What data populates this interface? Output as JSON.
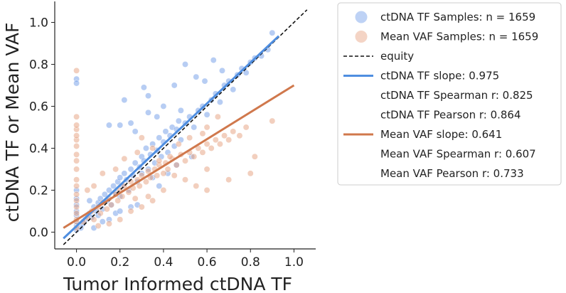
{
  "chart_data": {
    "type": "scatter",
    "xlabel": "Tumor Informed ctDNA TF",
    "ylabel": "ctDNA TF or Mean VAF",
    "xlim": [
      -0.1,
      1.1
    ],
    "ylim": [
      -0.08,
      1.1
    ],
    "x_ticks": [
      "0.0",
      "0.2",
      "0.4",
      "0.6",
      "0.8",
      "1.0"
    ],
    "y_ticks": [
      "0.0",
      "0.2",
      "0.4",
      "0.6",
      "0.8",
      "1.0"
    ],
    "grid": false,
    "legend_placement": "outside-right",
    "series": [
      {
        "name": "ctDNA TF Samples: n = 1659",
        "kind": "scatter",
        "color": "#6f9be8",
        "points": [
          [
            0.0,
            0.01
          ],
          [
            0.0,
            0.03
          ],
          [
            0.0,
            0.05
          ],
          [
            0.0,
            0.08
          ],
          [
            0.0,
            0.1
          ],
          [
            0.0,
            0.13
          ],
          [
            0.0,
            0.16
          ],
          [
            0.0,
            0.2
          ],
          [
            0.0,
            0.73
          ],
          [
            0.0,
            0.71
          ],
          [
            0.02,
            0.02
          ],
          [
            0.03,
            0.04
          ],
          [
            0.04,
            0.06
          ],
          [
            0.05,
            0.08
          ],
          [
            0.06,
            0.09
          ],
          [
            0.07,
            0.07
          ],
          [
            0.08,
            0.12
          ],
          [
            0.09,
            0.1
          ],
          [
            0.1,
            0.08
          ],
          [
            0.1,
            0.14
          ],
          [
            0.11,
            0.16
          ],
          [
            0.12,
            0.11
          ],
          [
            0.13,
            0.18
          ],
          [
            0.14,
            0.15
          ],
          [
            0.15,
            0.2
          ],
          [
            0.16,
            0.13
          ],
          [
            0.17,
            0.22
          ],
          [
            0.18,
            0.19
          ],
          [
            0.19,
            0.24
          ],
          [
            0.2,
            0.17
          ],
          [
            0.2,
            0.26
          ],
          [
            0.21,
            0.22
          ],
          [
            0.22,
            0.28
          ],
          [
            0.23,
            0.25
          ],
          [
            0.24,
            0.2
          ],
          [
            0.25,
            0.3
          ],
          [
            0.26,
            0.27
          ],
          [
            0.27,
            0.33
          ],
          [
            0.28,
            0.24
          ],
          [
            0.29,
            0.31
          ],
          [
            0.3,
            0.36
          ],
          [
            0.3,
            0.28
          ],
          [
            0.31,
            0.34
          ],
          [
            0.32,
            0.4
          ],
          [
            0.33,
            0.3
          ],
          [
            0.34,
            0.37
          ],
          [
            0.35,
            0.42
          ],
          [
            0.36,
            0.33
          ],
          [
            0.37,
            0.39
          ],
          [
            0.38,
            0.45
          ],
          [
            0.39,
            0.36
          ],
          [
            0.4,
            0.43
          ],
          [
            0.41,
            0.48
          ],
          [
            0.42,
            0.38
          ],
          [
            0.43,
            0.46
          ],
          [
            0.44,
            0.5
          ],
          [
            0.45,
            0.41
          ],
          [
            0.46,
            0.49
          ],
          [
            0.47,
            0.53
          ],
          [
            0.48,
            0.44
          ],
          [
            0.5,
            0.52
          ],
          [
            0.52,
            0.55
          ],
          [
            0.54,
            0.5
          ],
          [
            0.56,
            0.58
          ],
          [
            0.58,
            0.6
          ],
          [
            0.6,
            0.56
          ],
          [
            0.62,
            0.63
          ],
          [
            0.64,
            0.66
          ],
          [
            0.66,
            0.62
          ],
          [
            0.68,
            0.7
          ],
          [
            0.7,
            0.72
          ],
          [
            0.72,
            0.68
          ],
          [
            0.74,
            0.75
          ],
          [
            0.76,
            0.78
          ],
          [
            0.78,
            0.76
          ],
          [
            0.8,
            0.81
          ],
          [
            0.82,
            0.83
          ],
          [
            0.85,
            0.84
          ],
          [
            0.88,
            0.87
          ],
          [
            0.9,
            0.95
          ],
          [
            0.22,
            0.63
          ],
          [
            0.25,
            0.52
          ],
          [
            0.27,
            0.48
          ],
          [
            0.2,
            0.51
          ],
          [
            0.15,
            0.51
          ],
          [
            0.31,
            0.69
          ],
          [
            0.33,
            0.57
          ],
          [
            0.33,
            0.65
          ],
          [
            0.45,
            0.7
          ],
          [
            0.55,
            0.74
          ],
          [
            0.5,
            0.8
          ],
          [
            0.48,
            0.58
          ],
          [
            0.4,
            0.6
          ],
          [
            0.37,
            0.55
          ],
          [
            0.59,
            0.72
          ],
          [
            0.63,
            0.82
          ],
          [
            0.67,
            0.77
          ],
          [
            0.35,
            0.26
          ],
          [
            0.38,
            0.22
          ],
          [
            0.28,
            0.13
          ],
          [
            0.12,
            0.05
          ],
          [
            0.15,
            0.06
          ],
          [
            0.18,
            0.09
          ],
          [
            0.42,
            0.28
          ],
          [
            0.46,
            0.32
          ],
          [
            0.53,
            0.36
          ],
          [
            0.25,
            0.12
          ],
          [
            0.2,
            0.1
          ],
          [
            0.08,
            0.02
          ],
          [
            0.06,
            0.15
          ]
        ]
      },
      {
        "name": "Mean VAF Samples: n = 1659",
        "kind": "scatter",
        "color": "#e6a07e",
        "points": [
          [
            0.0,
            0.02
          ],
          [
            0.0,
            0.05
          ],
          [
            0.0,
            0.09
          ],
          [
            0.0,
            0.12
          ],
          [
            0.0,
            0.15
          ],
          [
            0.0,
            0.18
          ],
          [
            0.0,
            0.22
          ],
          [
            0.0,
            0.25
          ],
          [
            0.0,
            0.3
          ],
          [
            0.0,
            0.34
          ],
          [
            0.0,
            0.37
          ],
          [
            0.0,
            0.41
          ],
          [
            0.0,
            0.44
          ],
          [
            0.0,
            0.46
          ],
          [
            0.0,
            0.49
          ],
          [
            0.0,
            0.51
          ],
          [
            0.0,
            0.55
          ],
          [
            0.0,
            0.77
          ],
          [
            0.0,
            0.06
          ],
          [
            0.03,
            0.05
          ],
          [
            0.05,
            0.07
          ],
          [
            0.07,
            0.1
          ],
          [
            0.08,
            0.06
          ],
          [
            0.1,
            0.12
          ],
          [
            0.11,
            0.09
          ],
          [
            0.12,
            0.14
          ],
          [
            0.14,
            0.11
          ],
          [
            0.15,
            0.16
          ],
          [
            0.16,
            0.13
          ],
          [
            0.18,
            0.18
          ],
          [
            0.19,
            0.15
          ],
          [
            0.2,
            0.2
          ],
          [
            0.21,
            0.17
          ],
          [
            0.22,
            0.22
          ],
          [
            0.24,
            0.19
          ],
          [
            0.25,
            0.24
          ],
          [
            0.26,
            0.21
          ],
          [
            0.28,
            0.25
          ],
          [
            0.29,
            0.22
          ],
          [
            0.3,
            0.27
          ],
          [
            0.32,
            0.24
          ],
          [
            0.33,
            0.29
          ],
          [
            0.34,
            0.26
          ],
          [
            0.36,
            0.3
          ],
          [
            0.37,
            0.27
          ],
          [
            0.38,
            0.32
          ],
          [
            0.4,
            0.28
          ],
          [
            0.41,
            0.33
          ],
          [
            0.42,
            0.3
          ],
          [
            0.44,
            0.35
          ],
          [
            0.46,
            0.32
          ],
          [
            0.48,
            0.37
          ],
          [
            0.5,
            0.34
          ],
          [
            0.52,
            0.38
          ],
          [
            0.54,
            0.36
          ],
          [
            0.56,
            0.4
          ],
          [
            0.58,
            0.38
          ],
          [
            0.6,
            0.42
          ],
          [
            0.62,
            0.4
          ],
          [
            0.64,
            0.44
          ],
          [
            0.66,
            0.42
          ],
          [
            0.68,
            0.46
          ],
          [
            0.7,
            0.44
          ],
          [
            0.72,
            0.48
          ],
          [
            0.75,
            0.46
          ],
          [
            0.78,
            0.5
          ],
          [
            0.82,
            0.36
          ],
          [
            0.9,
            0.53
          ],
          [
            0.8,
            0.28
          ],
          [
            0.7,
            0.25
          ],
          [
            0.6,
            0.3
          ],
          [
            0.55,
            0.22
          ],
          [
            0.5,
            0.25
          ],
          [
            0.45,
            0.27
          ],
          [
            0.4,
            0.2
          ],
          [
            0.35,
            0.15
          ],
          [
            0.3,
            0.12
          ],
          [
            0.25,
            0.1
          ],
          [
            0.2,
            0.06
          ],
          [
            0.15,
            0.04
          ],
          [
            0.1,
            0.03
          ],
          [
            0.3,
            0.45
          ],
          [
            0.35,
            0.4
          ],
          [
            0.28,
            0.38
          ],
          [
            0.22,
            0.35
          ],
          [
            0.18,
            0.3
          ],
          [
            0.12,
            0.28
          ],
          [
            0.08,
            0.22
          ],
          [
            0.05,
            0.2
          ],
          [
            0.6,
            0.5
          ],
          [
            0.65,
            0.55
          ],
          [
            0.58,
            0.47
          ],
          [
            0.52,
            0.45
          ],
          [
            0.47,
            0.42
          ],
          [
            0.43,
            0.36
          ],
          [
            0.38,
            0.34
          ],
          [
            0.33,
            0.17
          ],
          [
            0.27,
            0.16
          ],
          [
            0.6,
            0.2
          ]
        ]
      },
      {
        "name": "equity",
        "kind": "line",
        "color": "#111111",
        "dash": true,
        "x": [
          -0.06,
          1.06
        ],
        "y": [
          -0.06,
          1.06
        ]
      },
      {
        "name": "ctDNA TF slope: 0.975",
        "kind": "line",
        "color": "#4f8ee0",
        "x": [
          -0.06,
          0.93
        ],
        "y": [
          -0.03,
          0.935
        ]
      },
      {
        "name": "ctDNA TF Spearman r: 0.825",
        "kind": "legend-text"
      },
      {
        "name": "ctDNA TF Pearson r: 0.864",
        "kind": "legend-text"
      },
      {
        "name": "Mean VAF slope: 0.641",
        "kind": "line",
        "color": "#d0784c",
        "x": [
          -0.06,
          1.0
        ],
        "y": [
          0.02,
          0.7
        ]
      },
      {
        "name": "Mean VAF Spearman r: 0.607",
        "kind": "legend-text"
      },
      {
        "name": "Mean VAF Pearson r: 0.733",
        "kind": "legend-text"
      }
    ]
  }
}
